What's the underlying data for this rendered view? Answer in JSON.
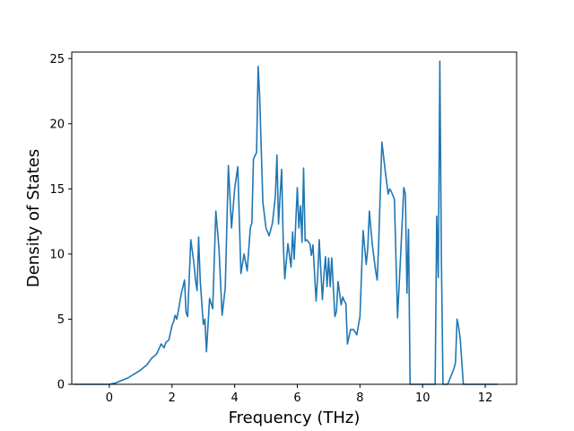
{
  "chart_data": {
    "type": "line",
    "title": "",
    "xlabel": "Frequency (THz)",
    "ylabel": "Density of States",
    "xlim": [
      -1.2,
      13.0
    ],
    "ylim": [
      0,
      25.5
    ],
    "xticks": [
      0,
      2,
      4,
      6,
      8,
      10,
      12
    ],
    "yticks": [
      0,
      5,
      10,
      15,
      20,
      25
    ],
    "grid": false,
    "legend": "none",
    "series": [
      {
        "color": "#1f77b4",
        "x": [
          -1.15,
          -0.5,
          0.0,
          0.2,
          0.4,
          0.6,
          0.8,
          1.0,
          1.2,
          1.35,
          1.5,
          1.6,
          1.65,
          1.75,
          1.8,
          1.9,
          2.0,
          2.05,
          2.1,
          2.15,
          2.2,
          2.3,
          2.4,
          2.45,
          2.5,
          2.6,
          2.7,
          2.75,
          2.8,
          2.85,
          2.9,
          3.0,
          3.05,
          3.1,
          3.2,
          3.3,
          3.4,
          3.5,
          3.6,
          3.7,
          3.8,
          3.9,
          4.0,
          4.1,
          4.2,
          4.3,
          4.4,
          4.5,
          4.55,
          4.6,
          4.7,
          4.75,
          4.8,
          4.85,
          4.9,
          5.0,
          5.1,
          5.2,
          5.25,
          5.3,
          5.35,
          5.4,
          5.5,
          5.55,
          5.6,
          5.7,
          5.8,
          5.85,
          5.9,
          6.0,
          6.05,
          6.1,
          6.15,
          6.2,
          6.25,
          6.3,
          6.4,
          6.45,
          6.5,
          6.6,
          6.65,
          6.7,
          6.8,
          6.85,
          6.9,
          6.95,
          7.0,
          7.05,
          7.1,
          7.2,
          7.25,
          7.3,
          7.4,
          7.45,
          7.5,
          7.55,
          7.6,
          7.7,
          7.75,
          7.8,
          7.9,
          8.0,
          8.1,
          8.2,
          8.25,
          8.3,
          8.35,
          8.4,
          8.5,
          8.55,
          8.6,
          8.7,
          8.8,
          8.9,
          8.95,
          9.0,
          9.1,
          9.2,
          9.3,
          9.4,
          9.45,
          9.5,
          9.55,
          9.6,
          9.65,
          9.7,
          9.75,
          10.4,
          10.45,
          10.5,
          10.55,
          10.6,
          10.65,
          10.7,
          10.75,
          10.8,
          10.9,
          11.0,
          11.05,
          11.1,
          11.15,
          11.2,
          11.3,
          11.4,
          11.6,
          12.0,
          12.4
        ],
        "y": [
          0.0,
          0.0,
          0.0,
          0.1,
          0.3,
          0.5,
          0.8,
          1.1,
          1.5,
          2.0,
          2.3,
          2.8,
          3.1,
          2.8,
          3.2,
          3.4,
          4.5,
          4.8,
          5.3,
          5.0,
          5.6,
          7.0,
          8.0,
          5.5,
          5.2,
          11.1,
          9.3,
          8.0,
          7.2,
          11.3,
          8.0,
          4.6,
          5.0,
          2.5,
          6.6,
          5.8,
          13.3,
          10.4,
          5.3,
          7.4,
          16.8,
          12.0,
          15.0,
          16.7,
          8.5,
          10.0,
          8.7,
          12.0,
          12.4,
          17.3,
          17.8,
          24.4,
          22.0,
          18.0,
          14.0,
          12.0,
          11.4,
          12.3,
          13.3,
          14.5,
          17.6,
          12.3,
          16.5,
          11.0,
          8.1,
          10.8,
          9.0,
          11.7,
          9.6,
          15.1,
          12.0,
          13.7,
          10.9,
          16.6,
          11.0,
          11.1,
          10.8,
          9.9,
          10.7,
          6.4,
          8.3,
          11.1,
          6.5,
          8.4,
          9.8,
          7.5,
          9.7,
          7.5,
          9.7,
          5.2,
          5.6,
          7.9,
          6.1,
          6.7,
          6.4,
          6.2,
          3.1,
          4.2,
          4.2,
          4.2,
          3.8,
          5.2,
          11.8,
          9.2,
          10.5,
          13.3,
          11.9,
          10.6,
          8.7,
          8.0,
          11.0,
          18.6,
          16.5,
          14.6,
          15.0,
          14.8,
          14.2,
          5.1,
          10.0,
          15.1,
          14.6,
          7.0,
          11.9,
          0.0,
          0.0,
          0.0,
          0.0,
          0.0,
          12.9,
          8.2,
          24.8,
          9.5,
          0.0,
          0.0,
          0.0,
          0.0,
          0.6,
          1.2,
          1.7,
          5.0,
          4.4,
          3.5,
          0.0,
          0.0,
          0.0,
          0.0,
          0.0
        ]
      }
    ]
  }
}
